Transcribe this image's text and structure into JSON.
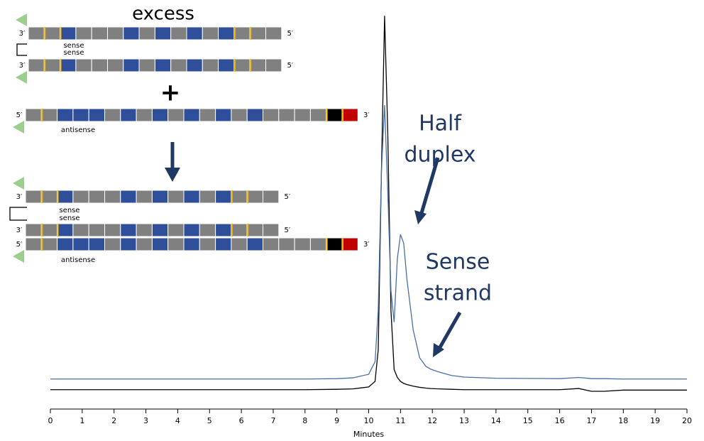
{
  "chart_data": {
    "type": "line",
    "x": [
      0,
      2,
      4,
      6,
      8,
      9,
      9.5,
      10,
      10.2,
      10.3,
      10.4,
      10.5,
      10.6,
      10.7,
      10.8,
      10.9,
      11,
      11.1,
      11.2,
      11.4,
      11.6,
      11.8,
      11.95,
      12.2,
      12.6,
      13,
      14,
      16,
      16.6,
      17,
      17.4,
      18,
      20
    ],
    "series": [
      {
        "color": "#000000",
        "values": [
          4.9,
          4.9,
          4.9,
          4.9,
          4.9,
          5,
          5.1,
          5.6,
          7,
          15,
          60,
          99.6,
          70,
          25,
          10,
          8,
          7,
          6.5,
          6.2,
          5.8,
          5.5,
          5.3,
          5.2,
          5.1,
          5,
          4.9,
          4.9,
          4.9,
          5.2,
          4.5,
          4.5,
          4.8,
          4.8
        ]
      },
      {
        "color": "#4a6fa5",
        "values": [
          7.6,
          7.6,
          7.6,
          7.6,
          7.6,
          7.7,
          7.9,
          8.8,
          12,
          25,
          60,
          77,
          55,
          30,
          22,
          38,
          44.2,
          42,
          33,
          20,
          13,
          10.8,
          10.1,
          9.4,
          8.5,
          8.1,
          7.8,
          7.7,
          8,
          7.7,
          7.7,
          7.6,
          7.6
        ]
      }
    ],
    "x_label": "Minutes",
    "xlim": [
      0,
      20
    ],
    "xticks": [
      0,
      1,
      2,
      3,
      4,
      5,
      6,
      7,
      8,
      9,
      10,
      11,
      12,
      13,
      14,
      15,
      16,
      17,
      18,
      19,
      20
    ],
    "ylim": [
      0,
      100
    ],
    "annotations": [
      {
        "lines": [
          "Half",
          "duplex"
        ]
      },
      {
        "lines": [
          "Sense",
          "strand"
        ]
      }
    ]
  },
  "diagram": {
    "title": "excess",
    "plus": "+",
    "strands": [
      {
        "left": "3′",
        "right": "5′"
      },
      {
        "left": "3′",
        "right": "5′"
      },
      {
        "left": "5′",
        "right": "3′"
      },
      {
        "left": "3′",
        "right": "5′"
      },
      {
        "left": "3′",
        "right": "5′"
      },
      {
        "left": "5′",
        "right": "3′"
      }
    ],
    "labels": [
      "sense",
      "sense",
      "antisense",
      "sense",
      "sense",
      "antisense"
    ]
  }
}
